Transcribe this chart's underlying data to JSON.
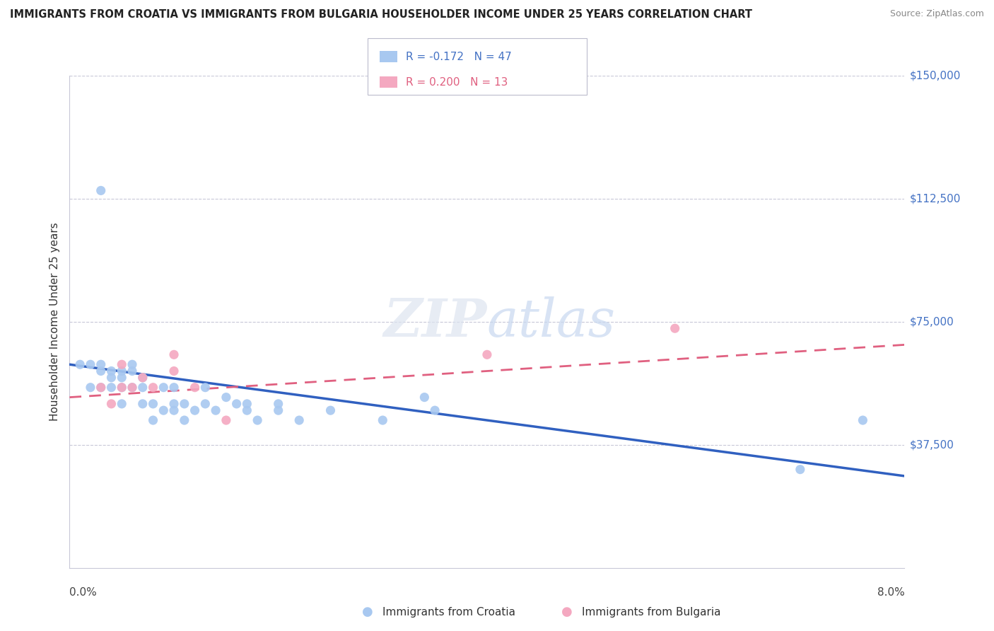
{
  "title": "IMMIGRANTS FROM CROATIA VS IMMIGRANTS FROM BULGARIA HOUSEHOLDER INCOME UNDER 25 YEARS CORRELATION CHART",
  "source": "Source: ZipAtlas.com",
  "ylabel": "Householder Income Under 25 years",
  "yticks": [
    0,
    37500,
    75000,
    112500,
    150000
  ],
  "ytick_labels": [
    "",
    "$37,500",
    "$75,000",
    "$112,500",
    "$150,000"
  ],
  "xlim": [
    0.0,
    0.08
  ],
  "ylim": [
    0,
    150000
  ],
  "croatia_R": "-0.172",
  "croatia_N": "47",
  "bulgaria_R": "0.200",
  "bulgaria_N": "13",
  "croatia_color": "#a8c8f0",
  "bulgaria_color": "#f4a8c0",
  "croatia_line_color": "#3060c0",
  "bulgaria_line_color": "#e06080",
  "croatia_scatter_x": [
    0.001,
    0.002,
    0.002,
    0.003,
    0.003,
    0.003,
    0.004,
    0.004,
    0.004,
    0.005,
    0.005,
    0.005,
    0.005,
    0.006,
    0.006,
    0.006,
    0.007,
    0.007,
    0.007,
    0.008,
    0.008,
    0.009,
    0.009,
    0.01,
    0.01,
    0.01,
    0.011,
    0.011,
    0.012,
    0.013,
    0.013,
    0.014,
    0.015,
    0.016,
    0.017,
    0.017,
    0.018,
    0.02,
    0.02,
    0.022,
    0.025,
    0.03,
    0.034,
    0.035,
    0.07,
    0.076,
    0.003
  ],
  "croatia_scatter_y": [
    62000,
    55000,
    62000,
    55000,
    60000,
    62000,
    55000,
    58000,
    60000,
    50000,
    55000,
    58000,
    60000,
    62000,
    55000,
    60000,
    58000,
    50000,
    55000,
    45000,
    50000,
    48000,
    55000,
    48000,
    50000,
    55000,
    45000,
    50000,
    48000,
    50000,
    55000,
    48000,
    52000,
    50000,
    48000,
    50000,
    45000,
    48000,
    50000,
    45000,
    48000,
    45000,
    52000,
    48000,
    30000,
    45000,
    115000
  ],
  "bulgaria_scatter_x": [
    0.003,
    0.004,
    0.005,
    0.005,
    0.006,
    0.007,
    0.008,
    0.01,
    0.01,
    0.012,
    0.015,
    0.04,
    0.058
  ],
  "bulgaria_scatter_y": [
    55000,
    50000,
    55000,
    62000,
    55000,
    58000,
    55000,
    60000,
    65000,
    55000,
    45000,
    65000,
    73000
  ],
  "croatia_trend_x": [
    0.0,
    0.08
  ],
  "croatia_trend_y": [
    62000,
    28000
  ],
  "bulgaria_trend_x": [
    0.0,
    0.08
  ],
  "bulgaria_trend_y": [
    52000,
    68000
  ]
}
